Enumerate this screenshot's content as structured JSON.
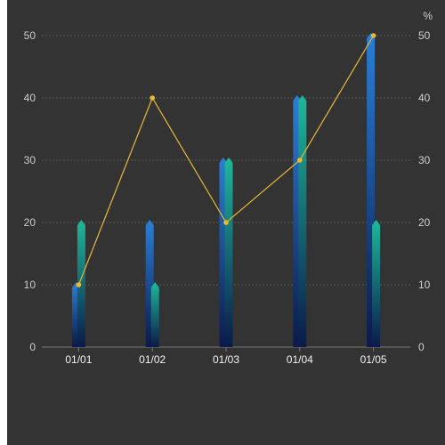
{
  "chart_data": {
    "type": "bar",
    "categories": [
      "01/01",
      "01/02",
      "01/03",
      "01/04",
      "01/05"
    ],
    "series": [
      {
        "type": "bar",
        "values": [
          10,
          20,
          30,
          40,
          50
        ],
        "color_top": "#2b7fd6",
        "color_bottom": "#0b1a4a"
      },
      {
        "type": "bar",
        "values": [
          20,
          10,
          30,
          40,
          20
        ],
        "color_top": "#1fb89a",
        "color_bottom": "#0b1a4a"
      },
      {
        "type": "line",
        "axis": "right",
        "values": [
          10,
          40,
          20,
          30,
          50
        ],
        "color": "#e8b931"
      }
    ],
    "y_left": {
      "ticks": [
        0,
        10,
        20,
        30,
        40,
        50
      ],
      "ylim": [
        0,
        50
      ]
    },
    "y_right": {
      "ticks": [
        0,
        10,
        20,
        30,
        40,
        50
      ],
      "ylim": [
        0,
        50
      ],
      "unit": "%"
    },
    "grid": true,
    "colors": {
      "background": "#333333",
      "grid": "#5a5a5a",
      "axis": "#777777"
    }
  }
}
